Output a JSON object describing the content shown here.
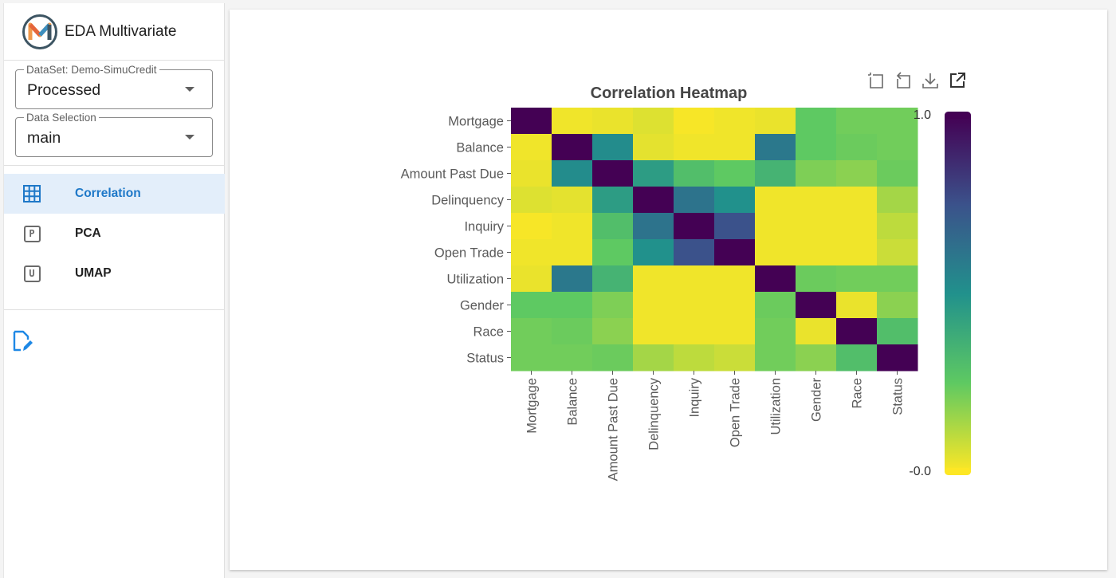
{
  "app": {
    "title": "EDA Multivariate"
  },
  "dataset": {
    "legend": "DataSet: Demo-SimuCredit",
    "value": "Processed"
  },
  "selection": {
    "legend": "Data Selection",
    "value": "main"
  },
  "nav": [
    {
      "label": "Correlation",
      "icon": "grid-icon",
      "active": true
    },
    {
      "label": "PCA",
      "icon": "p-icon",
      "active": false
    },
    {
      "label": "UMAP",
      "icon": "u-icon",
      "active": false
    }
  ],
  "toolbox": [
    "zoom-icon",
    "zoom-reset-icon",
    "download-icon",
    "open-external-icon"
  ],
  "colors": {
    "accent": "#1e78c8",
    "active_bg": "#e3eefa"
  },
  "chart_data": {
    "type": "heatmap",
    "title": "Correlation Heatmap",
    "categories": [
      "Mortgage",
      "Balance",
      "Amount Past Due",
      "Delinquency",
      "Inquiry",
      "Open Trade",
      "Utilization",
      "Gender",
      "Race",
      "Status"
    ],
    "values": [
      [
        1.0,
        0.02,
        0.03,
        0.05,
        0.01,
        0.02,
        0.03,
        0.25,
        0.22,
        0.22
      ],
      [
        0.02,
        1.0,
        0.52,
        0.04,
        0.02,
        0.02,
        0.6,
        0.25,
        0.23,
        0.22
      ],
      [
        0.03,
        0.52,
        1.0,
        0.45,
        0.3,
        0.25,
        0.35,
        0.2,
        0.18,
        0.23
      ],
      [
        0.05,
        0.04,
        0.45,
        1.0,
        0.62,
        0.5,
        0.02,
        0.02,
        0.02,
        0.14
      ],
      [
        0.01,
        0.02,
        0.3,
        0.62,
        1.0,
        0.75,
        0.02,
        0.02,
        0.02,
        0.1
      ],
      [
        0.02,
        0.02,
        0.25,
        0.5,
        0.75,
        1.0,
        0.02,
        0.02,
        0.02,
        0.08
      ],
      [
        0.03,
        0.6,
        0.35,
        0.02,
        0.02,
        0.02,
        1.0,
        0.23,
        0.22,
        0.22
      ],
      [
        0.25,
        0.25,
        0.2,
        0.02,
        0.02,
        0.02,
        0.23,
        1.0,
        0.03,
        0.18
      ],
      [
        0.22,
        0.23,
        0.18,
        0.02,
        0.02,
        0.02,
        0.22,
        0.03,
        1.0,
        0.3
      ],
      [
        0.22,
        0.22,
        0.23,
        0.14,
        0.1,
        0.08,
        0.22,
        0.18,
        0.3,
        1.0
      ]
    ],
    "colorscale": "viridis-reversed",
    "colorbar": {
      "max_label": "1.0",
      "min_label": "-0.0",
      "range": [
        0,
        1
      ]
    },
    "grid": false
  }
}
